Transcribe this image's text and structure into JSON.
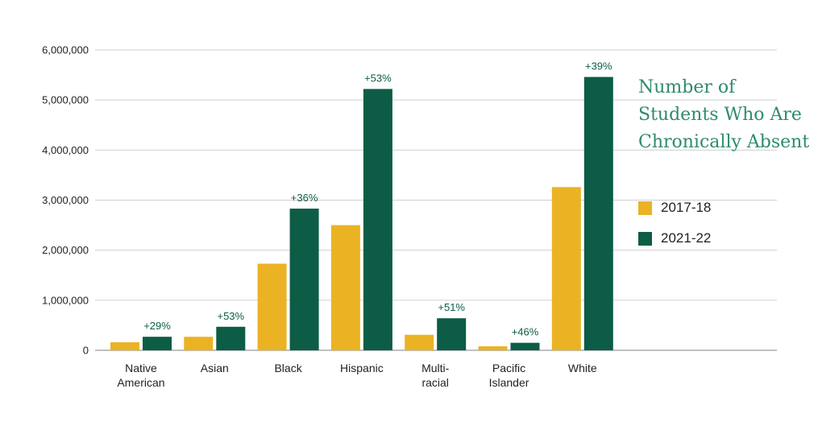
{
  "chart_data": {
    "type": "bar",
    "title": "Number of Students Who Are Chronically Absent",
    "xlabel": "",
    "ylabel": "",
    "ylim": [
      0,
      6000000
    ],
    "yticks": [
      0,
      1000000,
      2000000,
      3000000,
      4000000,
      5000000,
      6000000
    ],
    "ytick_labels": [
      "0",
      "1,000,000",
      "2,000,000",
      "3,000,000",
      "4,000,000",
      "5,000,000",
      "6,000,000"
    ],
    "grid": true,
    "legend_position": "right",
    "categories": [
      [
        "Native",
        "American"
      ],
      [
        "Asian"
      ],
      [
        "Black"
      ],
      [
        "Hispanic"
      ],
      [
        "Multi-",
        "racial"
      ],
      [
        "Pacific",
        "Islander"
      ],
      [
        "White"
      ]
    ],
    "series": [
      {
        "name": "2017-18",
        "color": "#ebb323",
        "values": [
          160000,
          270000,
          1730000,
          2500000,
          310000,
          80000,
          3260000
        ]
      },
      {
        "name": "2021-22",
        "color": "#0d5c46",
        "values": [
          270000,
          470000,
          2830000,
          5220000,
          640000,
          150000,
          5460000
        ]
      }
    ],
    "annotations": [
      "+29%",
      "+53%",
      "+36%",
      "+53%",
      "+51%",
      "+46%",
      "+39%"
    ]
  }
}
